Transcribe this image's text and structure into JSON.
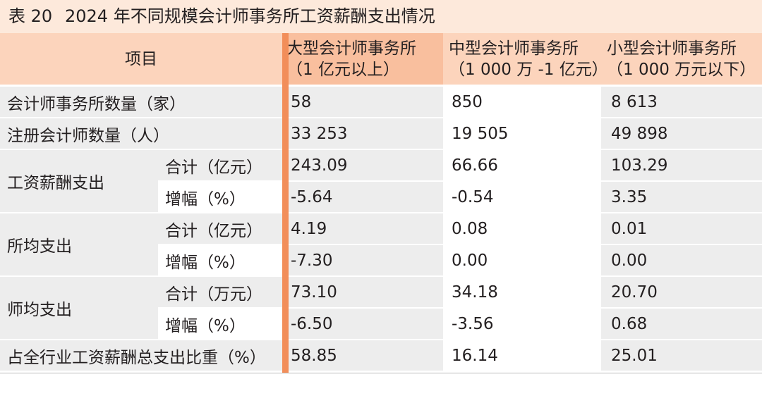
{
  "title": {
    "number": "表 20",
    "text": "2024 年不同规模会计师事务所工资薪酬支出情况"
  },
  "headers": {
    "item": "项目",
    "large": [
      "大型会计师事务所",
      "（1 亿元以上）"
    ],
    "medium": [
      "中型会计师事务所",
      "（1 000 万 -1 亿元）"
    ],
    "small": [
      "小型会计师事务所",
      "（1 000 万元以下）"
    ]
  },
  "rows": {
    "firms": {
      "label": "会计师事务所数量（家）",
      "values": [
        "58",
        "850",
        "8 613"
      ]
    },
    "cpas": {
      "label": "注册会计师数量（人）",
      "values": [
        "33 253",
        "19 505",
        "49 898"
      ]
    },
    "salary": {
      "label": "工资薪酬支出",
      "total_label": "合计（亿元）",
      "total": [
        "243.09",
        "66.66",
        "103.29"
      ],
      "growth_label": "增幅（%）",
      "growth": [
        "-5.64",
        "-0.54",
        "3.35"
      ]
    },
    "per_firm": {
      "label": "所均支出",
      "total_label": "合计（亿元）",
      "total": [
        "4.19",
        "0.08",
        "0.01"
      ],
      "growth_label": "增幅（%）",
      "growth": [
        "-7.30",
        "0.00",
        "0.00"
      ]
    },
    "per_cpa": {
      "label": "师均支出",
      "total_label": "合计（万元）",
      "total": [
        "73.10",
        "34.18",
        "20.70"
      ],
      "growth_label": "增幅（%）",
      "growth": [
        "-6.50",
        "-3.56",
        "0.68"
      ]
    },
    "share": {
      "label": "占全行业工资薪酬总支出比重（%）",
      "values": [
        "58.85",
        "16.14",
        "25.01"
      ]
    }
  },
  "colors": {
    "header": "#fcd4bc",
    "header_large": "#f9bf9e",
    "title_bg": "#fde9db",
    "divider": "#f28e5a",
    "row_gray": "#ededed"
  }
}
